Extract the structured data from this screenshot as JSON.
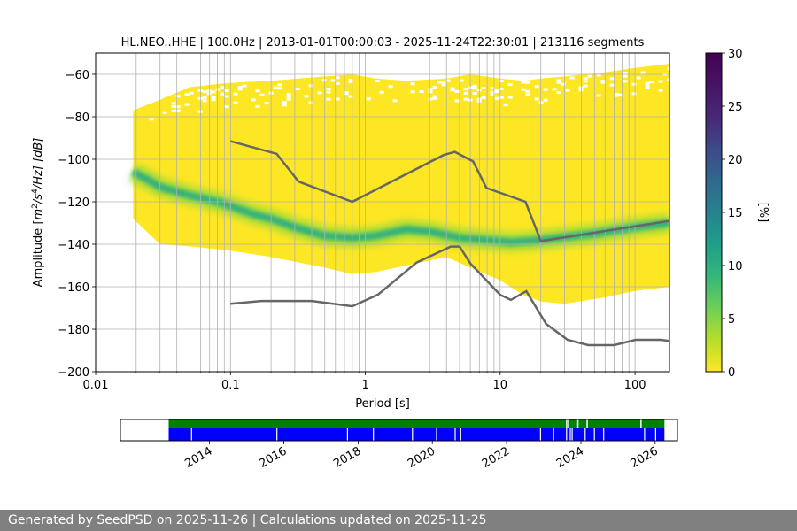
{
  "chart_data": [
    {
      "type": "heatmap",
      "title": "HL.NEO..HHE | 100.0Hz | 2013-01-01T00:00:03 - 2025-11-24T22:30:01 | 213116 segments",
      "xlabel": "Period [s]",
      "ylabel_parts": {
        "before": "Amplitude [",
        "m": "m",
        "m_exp": "2",
        "slash": "/s",
        "s_exp": "4",
        "rest": "/Hz] [dB]"
      },
      "x_scale": "log",
      "xlim": [
        0.01,
        180
      ],
      "ylim": [
        -200,
        -50
      ],
      "x_ticks": [
        {
          "value": 0.01,
          "label": "0.01"
        },
        {
          "value": 0.1,
          "label": "0.1"
        },
        {
          "value": 1,
          "label": "1"
        },
        {
          "value": 10,
          "label": "10"
        },
        {
          "value": 100,
          "label": "100"
        }
      ],
      "y_ticks": [
        {
          "value": -60,
          "label": "−60"
        },
        {
          "value": -80,
          "label": "−80"
        },
        {
          "value": -100,
          "label": "−100"
        },
        {
          "value": -120,
          "label": "−120"
        },
        {
          "value": -140,
          "label": "−140"
        },
        {
          "value": -160,
          "label": "−160"
        },
        {
          "value": -180,
          "label": "−180"
        },
        {
          "value": -200,
          "label": "−200"
        }
      ],
      "grid": true,
      "density_envelope": {
        "period": [
          0.019,
          0.03,
          0.05,
          0.1,
          0.2,
          0.5,
          0.8,
          1.2,
          2,
          4,
          6,
          10,
          15,
          20,
          30,
          60,
          100,
          180
        ],
        "lower_db": [
          -128,
          -140,
          -141,
          -143,
          -146,
          -151,
          -154,
          -153,
          -150,
          -146,
          -151,
          -157,
          -164,
          -167,
          -168,
          -165,
          -162,
          -160
        ],
        "upper_db": [
          -77,
          -72,
          -66,
          -64,
          -63,
          -61,
          -60,
          -62,
          -63,
          -62,
          -60,
          -62,
          -63,
          -62,
          -61,
          -59,
          -57,
          -55
        ]
      },
      "mode_curve": {
        "period": [
          0.019,
          0.025,
          0.03,
          0.05,
          0.08,
          0.1,
          0.15,
          0.2,
          0.3,
          0.5,
          0.8,
          1.2,
          2,
          3,
          5,
          8,
          12,
          20,
          50,
          100,
          180
        ],
        "db": [
          -106,
          -110,
          -113,
          -117,
          -120,
          -122,
          -126,
          -128,
          -132,
          -136,
          -137,
          -136,
          -133,
          -134,
          -137,
          -138,
          -139,
          -138,
          -135,
          -132,
          -130
        ]
      },
      "nhnm": {
        "period": [
          0.1,
          0.22,
          0.32,
          0.8,
          3.8,
          4.6,
          6.3,
          7.9,
          15.4,
          20,
          180
        ],
        "db": [
          -91.5,
          -97.4,
          -110.5,
          -120,
          -98,
          -96.5,
          -101,
          -113.5,
          -120,
          -138.5,
          -129
        ]
      },
      "nlnm": {
        "period": [
          0.1,
          0.17,
          0.4,
          0.8,
          1.24,
          2.4,
          4.3,
          5,
          6,
          10,
          12,
          15.6,
          21.9,
          31.6,
          45,
          70,
          101,
          154,
          180
        ],
        "db": [
          -168,
          -166.7,
          -166.7,
          -169.2,
          -163.7,
          -148.6,
          -141.1,
          -141.1,
          -149,
          -163.8,
          -166.2,
          -162.1,
          -177.5,
          -185,
          -187.5,
          -187.5,
          -185,
          -185,
          -185.5
        ]
      },
      "colorbar": {
        "label": "[%]",
        "min": 0,
        "max": 30,
        "ticks": [
          "0",
          "5",
          "10",
          "15",
          "20",
          "25",
          "30"
        ]
      }
    },
    {
      "type": "timeline",
      "x_tick_labels": [
        "2014",
        "2016",
        "2018",
        "2020",
        "2022",
        "2024",
        "2026"
      ],
      "x_tick_years": [
        2014,
        2016,
        2018,
        2020,
        2022,
        2024,
        2026
      ],
      "xlim_years": [
        2011.6,
        2026.6
      ],
      "coverage_years": [
        2012.9,
        2026.25
      ],
      "upper_bar_color": "#008000",
      "lower_bar_color": "#0000ff",
      "upper_gaps": [
        2023.6,
        2023.65,
        2023.9,
        2024.15,
        2025.6
      ],
      "lower_gaps": [
        2013.5,
        2015.8,
        2017.7,
        2018.4,
        2019.45,
        2020.1,
        2020.6,
        2020.75,
        2022.9,
        2023.25,
        2023.6,
        2023.7,
        2023.75,
        2024.1,
        2024.35,
        2024.6,
        2025.7,
        2026.0
      ]
    }
  ],
  "footer": {
    "text": "Generated by SeedPSD on 2025-11-26 | Calculations updated on 2025-11-25"
  },
  "colors": {
    "low_density": "#fde725",
    "high_density": "#21918c",
    "model_curve": "#666666",
    "grid": "#b0b0b0",
    "footer_bg": "#808080"
  }
}
